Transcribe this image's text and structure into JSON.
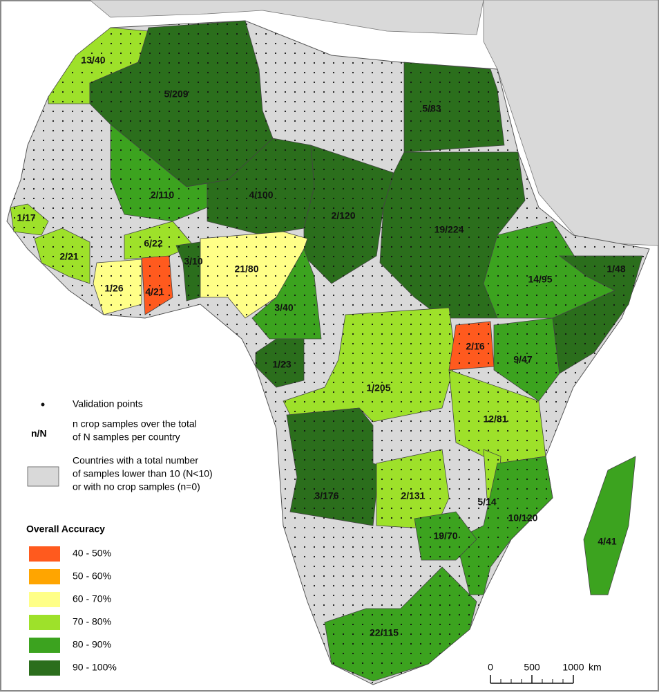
{
  "legend": {
    "points": "Validation points",
    "nN_symbol": "n/N",
    "nN_text": [
      "n crop samples over the total",
      "of N samples per country"
    ],
    "grey_text": [
      "Countries with a total number",
      "of samples lower than 10 (N<10)",
      "or with no crop samples (n=0)"
    ],
    "grey_color": "#d9d9d9",
    "title": "Overall Accuracy",
    "classes": [
      {
        "label": "40 - 50%",
        "color": "#ff5a1e"
      },
      {
        "label": "50 - 60%",
        "color": "#ffa500"
      },
      {
        "label": "60 - 70%",
        "color": "#ffff88"
      },
      {
        "label": "70 - 80%",
        "color": "#9ee12a"
      },
      {
        "label": "80 - 90%",
        "color": "#3ca31f"
      },
      {
        "label": "90 - 100%",
        "color": "#2b6e1c"
      }
    ]
  },
  "countries": [
    {
      "label": "13/40",
      "color": "#9ee12a"
    },
    {
      "label": "5/209",
      "color": "#2b6e1c"
    },
    {
      "label": "2/110",
      "color": "#3ca31f"
    },
    {
      "label": "4/100",
      "color": "#2b6e1c"
    },
    {
      "label": "2/120",
      "color": "#2b6e1c"
    },
    {
      "label": "19/224",
      "color": "#2b6e1c"
    },
    {
      "label": "5/83",
      "color": "#2b6e1c"
    },
    {
      "label": "1/17",
      "color": "#9ee12a"
    },
    {
      "label": "2/21",
      "color": "#9ee12a"
    },
    {
      "label": "1/26",
      "color": "#ffff88"
    },
    {
      "label": "4/21",
      "color": "#ff5a1e"
    },
    {
      "label": "6/22",
      "color": "#9ee12a"
    },
    {
      "label": "3/10",
      "color": "#2b6e1c"
    },
    {
      "label": "21/80",
      "color": "#ffff88"
    },
    {
      "label": "3/40",
      "color": "#3ca31f"
    },
    {
      "label": "1/23",
      "color": "#2b6e1c"
    },
    {
      "label": "1/205",
      "color": "#9ee12a"
    },
    {
      "label": "2/16",
      "color": "#ff5a1e"
    },
    {
      "label": "9/47",
      "color": "#3ca31f"
    },
    {
      "label": "14/95",
      "color": "#3ca31f"
    },
    {
      "label": "1/48",
      "color": "#2b6e1c"
    },
    {
      "label": "12/81",
      "color": "#9ee12a"
    },
    {
      "label": "3/176",
      "color": "#2b6e1c"
    },
    {
      "label": "2/131",
      "color": "#9ee12a"
    },
    {
      "label": "5/14",
      "color": "#9ee12a"
    },
    {
      "label": "10/120",
      "color": "#3ca31f"
    },
    {
      "label": "19/70",
      "color": "#3ca31f"
    },
    {
      "label": "22/115",
      "color": "#3ca31f"
    },
    {
      "label": "4/41",
      "color": "#3ca31f"
    }
  ],
  "scale": {
    "ticks": [
      0,
      500,
      1000
    ],
    "unit": "km"
  }
}
